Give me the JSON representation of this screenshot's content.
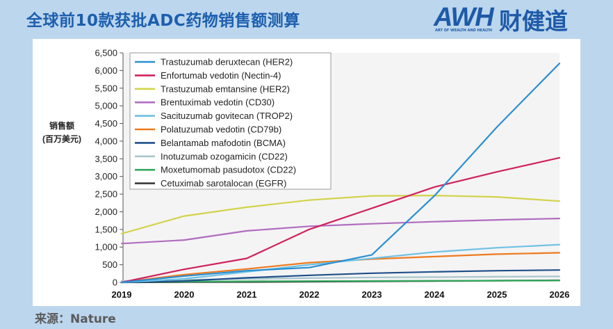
{
  "header": {
    "title": "全球前10款获批ADC药物销售额测算"
  },
  "brand": {
    "mark": "AWH",
    "name": "财健道",
    "subtitle": "ART OF WEALTH AND HEALTH"
  },
  "footer": {
    "source": "来源：Nature"
  },
  "colors": {
    "background": "#bcd6ee",
    "title": "#1d5fae",
    "brand": "#1e5aa8"
  },
  "chart_data": {
    "type": "line",
    "ylabel": [
      "销售额",
      "(百万美元)"
    ],
    "ylim": [
      0,
      6500
    ],
    "yticks": [
      0,
      500,
      1000,
      1500,
      2000,
      2500,
      3000,
      3500,
      4000,
      4500,
      5000,
      5500,
      6000,
      6500
    ],
    "ytick_labels": [
      "0",
      "500",
      "1,000",
      "1,500",
      "2,000",
      "2,500",
      "3,000",
      "3,500",
      "4,000",
      "4,500",
      "5,000",
      "5,500",
      "6,000",
      "6,500"
    ],
    "x": [
      "2019",
      "2020",
      "2021",
      "2022",
      "2023",
      "2024",
      "2025",
      "2026"
    ],
    "legend_position": "top-left",
    "series": [
      {
        "name": "Trastuzumab deruxtecan (HER2)",
        "color": "#2a8fd1",
        "values": [
          0,
          180,
          330,
          420,
          780,
          2450,
          4400,
          6200
        ]
      },
      {
        "name": "Enfortumab vedotin (Nectin-4)",
        "color": "#d0215f",
        "values": [
          0,
          370,
          680,
          1500,
          2100,
          2700,
          3130,
          3530
        ]
      },
      {
        "name": "Trastuzumab emtansine (HER2)",
        "color": "#d2d34a",
        "values": [
          1380,
          1880,
          2130,
          2330,
          2450,
          2460,
          2420,
          2300
        ]
      },
      {
        "name": "Brentuximab vedotin (CD30)",
        "color": "#b06cbf",
        "values": [
          1100,
          1200,
          1460,
          1590,
          1660,
          1720,
          1770,
          1810
        ]
      },
      {
        "name": "Sacituzumab govitecan (TROP2)",
        "color": "#6ec1e4",
        "values": [
          0,
          100,
          300,
          500,
          680,
          860,
          980,
          1070
        ]
      },
      {
        "name": "Polatuzumab vedotin (CD79b)",
        "color": "#ee7a1e",
        "values": [
          0,
          220,
          380,
          560,
          660,
          730,
          800,
          840
        ]
      },
      {
        "name": "Belantamab mafodotin (BCMA)",
        "color": "#1f4f8a",
        "values": [
          0,
          40,
          130,
          200,
          260,
          300,
          330,
          350
        ]
      },
      {
        "name": "Inotuzumab ozogamicin (CD22)",
        "color": "#a9c6cc",
        "values": [
          40,
          70,
          100,
          120,
          140,
          150,
          160,
          170
        ]
      },
      {
        "name": "Moxetumomab pasudotox (CD22)",
        "color": "#2fa85a",
        "values": [
          10,
          20,
          30,
          35,
          40,
          45,
          50,
          55
        ]
      },
      {
        "name": "Cetuximab sarotalocan (EGFR)",
        "color": "#3a3a3a",
        "values": [
          0,
          5,
          10,
          20,
          30,
          40,
          50,
          60
        ]
      }
    ]
  }
}
